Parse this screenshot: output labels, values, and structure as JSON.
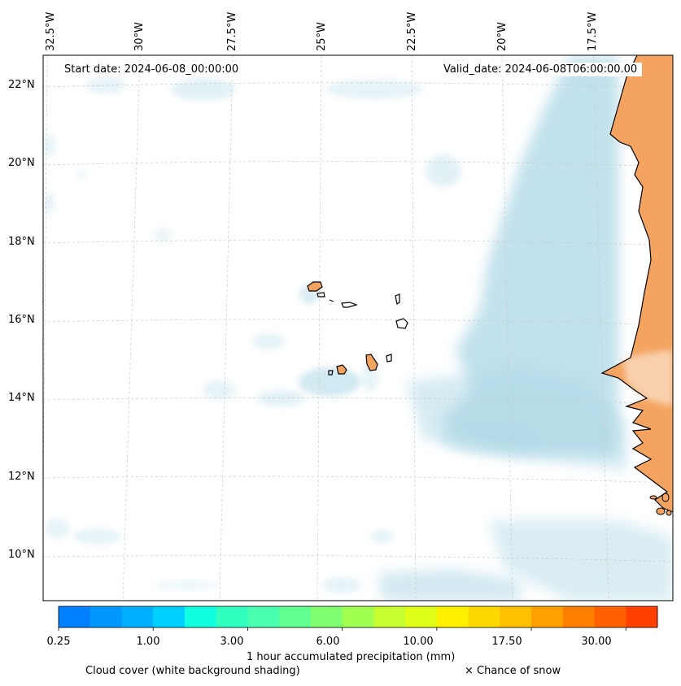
{
  "map": {
    "start_date_text": "Start date: 2024-06-08_00:00:00",
    "valid_date_text": "Valid_date: 2024-06-08T06:00:00.00",
    "lon_labels": [
      "32.5°W",
      "30°W",
      "27.5°W",
      "25°W",
      "22.5°W",
      "20°W",
      "17.5°W"
    ],
    "lat_labels": [
      "22°N",
      "20°N",
      "18°N",
      "16°N",
      "14°N",
      "12°N",
      "10°N"
    ],
    "land_color": "#f4a460",
    "cloud_color": "#add8e6",
    "ocean_color": "#ffffff"
  },
  "colorbar": {
    "colors": [
      "#0080ff",
      "#0098ff",
      "#00b0ff",
      "#00d0ff",
      "#10ffe0",
      "#30ffc0",
      "#48ffb0",
      "#60ff90",
      "#80ff70",
      "#a0ff50",
      "#c8ff30",
      "#e0ff18",
      "#fff000",
      "#ffd800",
      "#ffc000",
      "#ffa000",
      "#ff8000",
      "#ff6000",
      "#ff4000"
    ],
    "tick_labels": [
      "0.25",
      "1.00",
      "3.00",
      "6.00",
      "10.00",
      "17.50",
      "30.00"
    ],
    "label": "1 hour accumulated precipitation (mm)"
  },
  "legend": {
    "cloud_text": "Cloud cover (white background shading)",
    "snow_text": "× Chance of snow"
  }
}
